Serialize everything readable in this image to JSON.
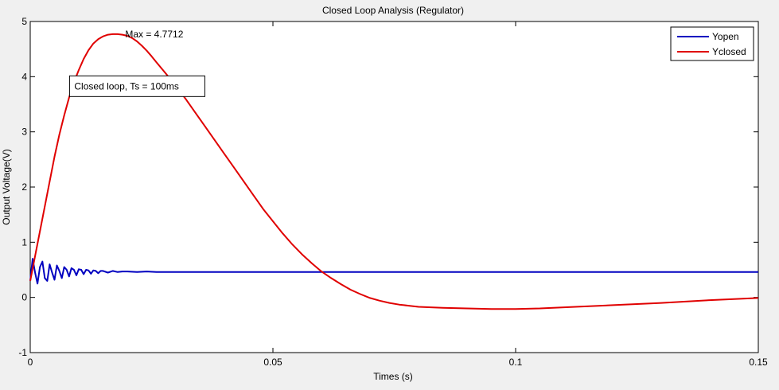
{
  "chart_data": {
    "type": "line",
    "title": "Closed Loop Analysis (Regulator)",
    "xlabel": "Times (s)",
    "ylabel": "Output Voltage(V)",
    "xlim": [
      0,
      0.15
    ],
    "ylim": [
      -1,
      5
    ],
    "x_ticks": [
      0,
      0.05,
      0.1,
      0.15
    ],
    "x_tick_labels": [
      "0",
      "0.05",
      "0.1",
      "0.15"
    ],
    "y_ticks": [
      -1,
      0,
      1,
      2,
      3,
      4,
      5
    ],
    "y_tick_labels": [
      "-1",
      "0",
      "1",
      "2",
      "3",
      "4",
      "5"
    ],
    "grid": false,
    "legend_position": "top-right",
    "series": [
      {
        "name": "Yopen",
        "color": "#0000c0",
        "x": [
          0,
          0.0005,
          0.001,
          0.0015,
          0.002,
          0.0025,
          0.003,
          0.0035,
          0.004,
          0.0045,
          0.005,
          0.0055,
          0.006,
          0.0065,
          0.007,
          0.0075,
          0.008,
          0.0085,
          0.009,
          0.0095,
          0.01,
          0.0105,
          0.011,
          0.0115,
          0.012,
          0.0125,
          0.013,
          0.0135,
          0.014,
          0.0145,
          0.015,
          0.016,
          0.017,
          0.018,
          0.019,
          0.02,
          0.022,
          0.024,
          0.026,
          0.028,
          0.03,
          0.04,
          0.06,
          0.08,
          0.1,
          0.12,
          0.14,
          0.15
        ],
        "y": [
          0.3,
          0.7,
          0.45,
          0.25,
          0.55,
          0.65,
          0.35,
          0.3,
          0.6,
          0.45,
          0.32,
          0.58,
          0.48,
          0.35,
          0.55,
          0.5,
          0.38,
          0.53,
          0.5,
          0.4,
          0.51,
          0.5,
          0.42,
          0.5,
          0.49,
          0.43,
          0.49,
          0.48,
          0.44,
          0.48,
          0.48,
          0.45,
          0.48,
          0.46,
          0.47,
          0.47,
          0.46,
          0.47,
          0.46,
          0.46,
          0.46,
          0.46,
          0.46,
          0.46,
          0.46,
          0.46,
          0.46,
          0.46
        ]
      },
      {
        "name": "Yclosed",
        "color": "#e00000",
        "x": [
          0,
          0.001,
          0.002,
          0.003,
          0.004,
          0.005,
          0.006,
          0.007,
          0.008,
          0.009,
          0.01,
          0.011,
          0.012,
          0.013,
          0.014,
          0.015,
          0.016,
          0.017,
          0.018,
          0.019,
          0.02,
          0.021,
          0.022,
          0.023,
          0.024,
          0.025,
          0.026,
          0.028,
          0.03,
          0.032,
          0.034,
          0.036,
          0.038,
          0.04,
          0.042,
          0.044,
          0.046,
          0.048,
          0.05,
          0.052,
          0.054,
          0.056,
          0.058,
          0.06,
          0.062,
          0.064,
          0.066,
          0.068,
          0.07,
          0.072,
          0.074,
          0.076,
          0.078,
          0.08,
          0.085,
          0.09,
          0.095,
          0.1,
          0.105,
          0.11,
          0.12,
          0.13,
          0.14,
          0.15
        ],
        "y": [
          0.3,
          0.75,
          1.2,
          1.65,
          2.1,
          2.55,
          2.95,
          3.3,
          3.62,
          3.9,
          4.12,
          4.32,
          4.48,
          4.6,
          4.68,
          4.73,
          4.76,
          4.77,
          4.77,
          4.76,
          4.74,
          4.7,
          4.64,
          4.56,
          4.47,
          4.37,
          4.26,
          4.05,
          3.83,
          3.6,
          3.35,
          3.1,
          2.85,
          2.6,
          2.35,
          2.1,
          1.85,
          1.6,
          1.38,
          1.16,
          0.96,
          0.78,
          0.62,
          0.47,
          0.35,
          0.24,
          0.14,
          0.06,
          -0.01,
          -0.06,
          -0.1,
          -0.13,
          -0.15,
          -0.17,
          -0.19,
          -0.2,
          -0.21,
          -0.21,
          -0.2,
          -0.18,
          -0.14,
          -0.1,
          -0.05,
          -0.01
        ]
      }
    ],
    "annotations": [
      {
        "text": "Max = 4.7712",
        "x": 0.0194,
        "y": 4.7712
      },
      {
        "text": "Closed loop, Ts = 100ms",
        "boxed": true,
        "x": 0.014,
        "y": 4.0
      }
    ]
  }
}
